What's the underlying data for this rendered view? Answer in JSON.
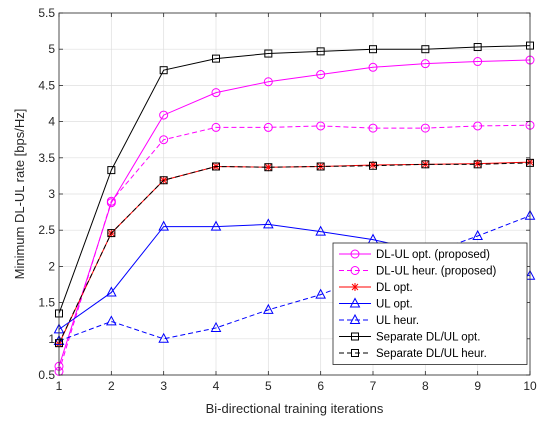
{
  "chart_data": {
    "type": "line",
    "xlabel": "Bi-directional training iterations",
    "ylabel": "Minimum DL-UL rate [bps/Hz]",
    "xlim": [
      1,
      10
    ],
    "ylim": [
      0.5,
      5.5
    ],
    "xticks": [
      1,
      2,
      3,
      4,
      5,
      6,
      7,
      8,
      9,
      10
    ],
    "yticks": [
      0.5,
      1,
      1.5,
      2,
      2.5,
      3,
      3.5,
      4,
      4.5,
      5,
      5.5
    ],
    "grid": true,
    "legend_position": "bottom-right",
    "x": [
      1,
      2,
      3,
      4,
      5,
      6,
      7,
      8,
      9,
      10
    ],
    "series": [
      {
        "name": "DL-UL opt. (proposed)",
        "values": [
          0.62,
          2.88,
          4.09,
          4.4,
          4.55,
          4.65,
          4.75,
          4.8,
          4.83,
          4.85
        ],
        "color": "#ff00ff",
        "dash": "solid",
        "marker": "circle"
      },
      {
        "name": "DL-UL heur. (proposed)",
        "values": [
          0.55,
          2.9,
          3.75,
          3.92,
          3.92,
          3.94,
          3.91,
          3.91,
          3.94,
          3.95
        ],
        "color": "#ff00ff",
        "dash": "dashed",
        "marker": "circle"
      },
      {
        "name": "DL opt.",
        "values": [
          0.93,
          2.46,
          3.19,
          3.38,
          3.37,
          3.38,
          3.4,
          3.41,
          3.42,
          3.44
        ],
        "color": "#ff0000",
        "dash": "solid",
        "marker": "asterisk"
      },
      {
        "name": "UL opt.",
        "values": [
          1.13,
          1.64,
          2.55,
          2.55,
          2.58,
          2.48,
          2.37,
          2.21,
          2.01,
          1.87
        ],
        "color": "#0000ff",
        "dash": "solid",
        "marker": "triangle"
      },
      {
        "name": "UL heur.",
        "values": [
          0.97,
          1.24,
          1.0,
          1.15,
          1.4,
          1.61,
          1.89,
          2.16,
          2.42,
          2.7
        ],
        "color": "#0000ff",
        "dash": "dashed",
        "marker": "triangle"
      },
      {
        "name": "Separate DL/UL opt.",
        "values": [
          1.35,
          3.33,
          4.71,
          4.87,
          4.94,
          4.97,
          5.0,
          5.0,
          5.03,
          5.05
        ],
        "color": "#000000",
        "dash": "solid",
        "marker": "square"
      },
      {
        "name": "Separate DL/UL heur.",
        "values": [
          0.94,
          2.46,
          3.19,
          3.38,
          3.37,
          3.38,
          3.39,
          3.41,
          3.41,
          3.43
        ],
        "color": "#000000",
        "dash": "dashed",
        "marker": "square"
      }
    ]
  }
}
